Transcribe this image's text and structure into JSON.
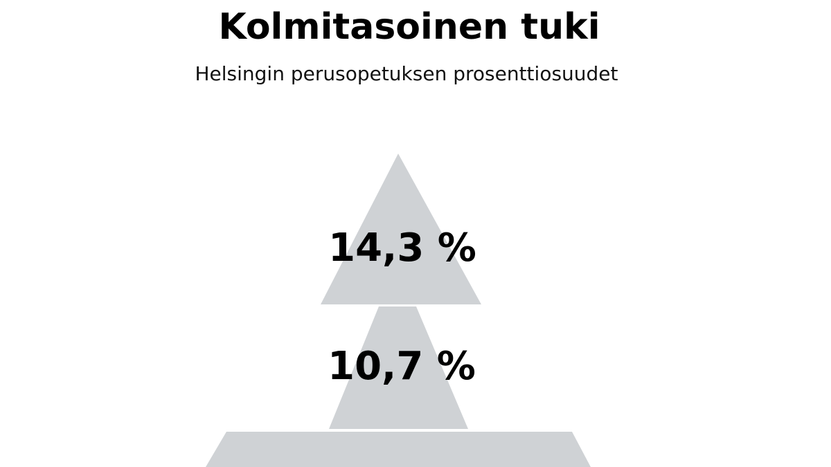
{
  "header": {
    "title": "Kolmitasoinen tuki",
    "subtitle": "Helsingin perusopetuksen prosenttiosuudet"
  },
  "pyramid": {
    "levels": [
      {
        "label": "14,3 %"
      },
      {
        "label": "10,7 %"
      }
    ]
  }
}
